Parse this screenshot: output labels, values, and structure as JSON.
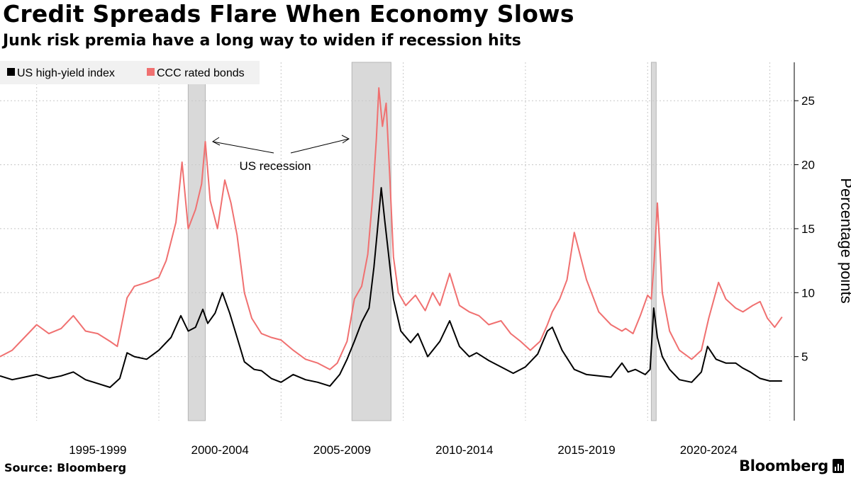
{
  "title": "Credit Spreads Flare When Economy Slows",
  "subtitle": "Junk risk premia have a long way to widen if recession hits",
  "source": "Source: Bloomberg",
  "brand": "Bloomberg",
  "brand_icon": "bloomberg-terminal-icon",
  "colors": {
    "hy": "#000000",
    "ccc": "#f07070",
    "recession": "#d9d9d9",
    "grid": "#c8c8c8"
  },
  "chart_data": {
    "type": "line",
    "title": "Credit Spreads Flare When Economy Slows",
    "subtitle": "Junk risk premia have a long way to widen if recession hits",
    "xlabel": "",
    "ylabel": "Percentage points",
    "xlim": [
      1993.5,
      2026.0
    ],
    "ylim": [
      0,
      28
    ],
    "y_ticks": [
      5,
      10,
      15,
      20,
      25
    ],
    "x_tick_labels": [
      "1995-1999",
      "2000-2004",
      "2005-2009",
      "2010-2014",
      "2015-2019",
      "2020-2024"
    ],
    "x_tick_label_centers": [
      1997.5,
      2002.5,
      2007.5,
      2012.5,
      2017.5,
      2022.5
    ],
    "legend": {
      "position": "top-left",
      "entries": [
        "US high-yield index",
        "CCC rated bonds"
      ]
    },
    "annotation": "US recession",
    "recessions": [
      {
        "start": 2001.2,
        "end": 2001.9
      },
      {
        "start": 2007.9,
        "end": 2009.5
      },
      {
        "start": 2020.15,
        "end": 2020.35
      }
    ],
    "series": [
      {
        "name": "US high-yield index",
        "x": [
          1993.5,
          1994.0,
          1994.5,
          1995.0,
          1995.5,
          1996.0,
          1996.5,
          1997.0,
          1997.5,
          1998.0,
          1998.4,
          1998.7,
          1999.0,
          1999.5,
          2000.0,
          2000.5,
          2000.9,
          2001.2,
          2001.5,
          2001.8,
          2002.0,
          2002.3,
          2002.6,
          2002.9,
          2003.2,
          2003.5,
          2003.9,
          2004.2,
          2004.6,
          2005.0,
          2005.5,
          2006.0,
          2006.5,
          2007.0,
          2007.4,
          2007.7,
          2008.0,
          2008.3,
          2008.6,
          2008.8,
          2008.95,
          2009.1,
          2009.25,
          2009.4,
          2009.6,
          2009.9,
          2010.3,
          2010.6,
          2011.0,
          2011.5,
          2011.9,
          2012.3,
          2012.7,
          2013.0,
          2013.5,
          2014.0,
          2014.5,
          2015.0,
          2015.5,
          2015.9,
          2016.1,
          2016.5,
          2017.0,
          2017.5,
          2018.0,
          2018.5,
          2018.95,
          2019.2,
          2019.5,
          2019.9,
          2020.1,
          2020.25,
          2020.4,
          2020.6,
          2020.9,
          2021.3,
          2021.8,
          2022.2,
          2022.45,
          2022.8,
          2023.2,
          2023.6,
          2023.9,
          2024.2,
          2024.6,
          2025.0,
          2025.5
        ],
        "values": [
          3.5,
          3.2,
          3.4,
          3.6,
          3.3,
          3.5,
          3.8,
          3.2,
          2.9,
          2.6,
          3.3,
          5.3,
          5.0,
          4.8,
          5.5,
          6.5,
          8.2,
          7.0,
          7.3,
          8.7,
          7.6,
          8.4,
          10.0,
          8.4,
          6.5,
          4.6,
          4.0,
          3.9,
          3.3,
          3.0,
          3.6,
          3.2,
          3.0,
          2.7,
          3.6,
          4.8,
          6.2,
          7.7,
          8.8,
          12.0,
          15.0,
          18.2,
          15.5,
          13.0,
          9.5,
          7.0,
          6.1,
          6.8,
          5.0,
          6.2,
          7.8,
          5.8,
          5.0,
          5.3,
          4.7,
          4.2,
          3.7,
          4.2,
          5.2,
          7.0,
          7.3,
          5.5,
          4.0,
          3.6,
          3.5,
          3.4,
          4.5,
          3.8,
          4.0,
          3.6,
          4.0,
          8.8,
          6.5,
          5.0,
          4.0,
          3.2,
          3.0,
          3.8,
          5.8,
          4.8,
          4.5,
          4.5,
          4.1,
          3.8,
          3.3,
          3.1,
          3.1
        ]
      },
      {
        "name": "CCC rated bonds",
        "x": [
          1993.5,
          1994.0,
          1994.5,
          1995.0,
          1995.5,
          1996.0,
          1996.5,
          1997.0,
          1997.5,
          1998.0,
          1998.3,
          1998.7,
          1999.0,
          1999.5,
          2000.0,
          2000.3,
          2000.7,
          2000.95,
          2001.2,
          2001.5,
          2001.75,
          2001.9,
          2002.1,
          2002.4,
          2002.7,
          2002.95,
          2003.2,
          2003.5,
          2003.8,
          2004.2,
          2004.6,
          2005.0,
          2005.5,
          2006.0,
          2006.5,
          2007.0,
          2007.3,
          2007.7,
          2008.0,
          2008.3,
          2008.55,
          2008.75,
          2008.9,
          2009.0,
          2009.15,
          2009.3,
          2009.45,
          2009.6,
          2009.8,
          2010.1,
          2010.5,
          2010.9,
          2011.2,
          2011.5,
          2011.9,
          2012.3,
          2012.7,
          2013.1,
          2013.5,
          2014.0,
          2014.4,
          2014.8,
          2015.2,
          2015.6,
          2015.9,
          2016.1,
          2016.4,
          2016.7,
          2017.0,
          2017.5,
          2018.0,
          2018.5,
          2018.95,
          2019.1,
          2019.4,
          2019.7,
          2020.0,
          2020.15,
          2020.27,
          2020.4,
          2020.6,
          2020.9,
          2021.3,
          2021.8,
          2022.2,
          2022.5,
          2022.9,
          2023.2,
          2023.6,
          2023.9,
          2024.3,
          2024.6,
          2024.9,
          2025.2,
          2025.5
        ],
        "values": [
          5.0,
          5.5,
          6.5,
          7.5,
          6.8,
          7.2,
          8.2,
          7.0,
          6.8,
          6.2,
          5.8,
          9.6,
          10.5,
          10.8,
          11.2,
          12.5,
          15.5,
          20.2,
          15.0,
          16.5,
          18.5,
          21.8,
          17.2,
          15.0,
          18.8,
          17.0,
          14.5,
          10.0,
          8.0,
          6.8,
          6.5,
          6.3,
          5.5,
          4.8,
          4.5,
          4.0,
          4.5,
          6.2,
          9.5,
          10.5,
          13.0,
          17.5,
          22.0,
          26.0,
          23.0,
          24.8,
          19.0,
          12.8,
          10.0,
          9.0,
          9.8,
          8.6,
          10.0,
          9.0,
          11.5,
          9.0,
          8.5,
          8.2,
          7.5,
          7.8,
          6.8,
          6.2,
          5.5,
          6.2,
          7.5,
          8.5,
          9.5,
          11.0,
          14.7,
          11.0,
          8.5,
          7.5,
          7.0,
          7.2,
          6.8,
          8.2,
          9.8,
          9.5,
          12.5,
          17.0,
          10.0,
          7.0,
          5.5,
          4.8,
          5.5,
          8.0,
          10.8,
          9.5,
          8.8,
          8.5,
          9.0,
          9.3,
          8.0,
          7.3,
          8.1
        ]
      }
    ]
  }
}
